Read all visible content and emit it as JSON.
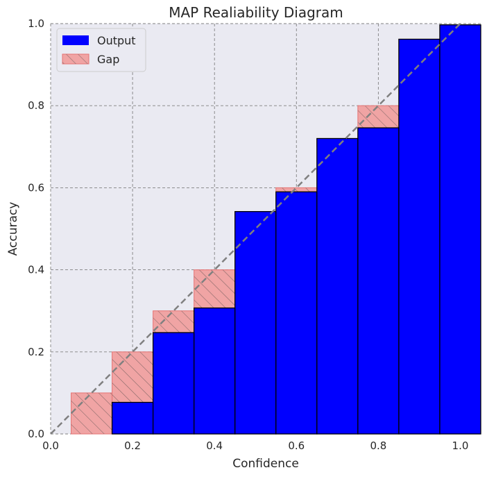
{
  "chart_data": {
    "type": "bar",
    "title": "MAP Realiability Diagram",
    "xlabel": "Confidence",
    "ylabel": "Accuracy",
    "xlim": [
      0.0,
      1.05
    ],
    "ylim": [
      0.0,
      1.0
    ],
    "xticks": [
      "0.0",
      "0.2",
      "0.4",
      "0.6",
      "0.8",
      "1.0"
    ],
    "yticks": [
      "0.0",
      "0.2",
      "0.4",
      "0.6",
      "0.8",
      "1.0"
    ],
    "bin_width": 0.1,
    "bin_centers": [
      0.1,
      0.2,
      0.3,
      0.4,
      0.5,
      0.6,
      0.7,
      0.8,
      0.9,
      1.0
    ],
    "series": [
      {
        "name": "Output",
        "values": [
          0.0,
          0.077,
          0.247,
          0.307,
          0.542,
          0.59,
          0.72,
          0.746,
          0.962,
          0.997
        ]
      },
      {
        "name": "Gap",
        "from": [
          0.0,
          0.077,
          0.247,
          0.307,
          0.542,
          0.59,
          0.72,
          0.746,
          0.962,
          0.997
        ],
        "to": [
          0.1,
          0.2,
          0.3,
          0.4,
          0.5,
          0.6,
          0.7,
          0.8,
          0.9,
          1.0
        ]
      }
    ],
    "reference_line": "diagonal",
    "grid": true,
    "legend_position": "top-left",
    "colors": {
      "output": "#0000ff",
      "gap_fill": "#f0a4a4",
      "gap_edge": "#e57373",
      "hatch": "#8a6a6a",
      "diagonal": "#808080",
      "plot_bg": "#eaeaf2",
      "grid": "#808080"
    }
  }
}
